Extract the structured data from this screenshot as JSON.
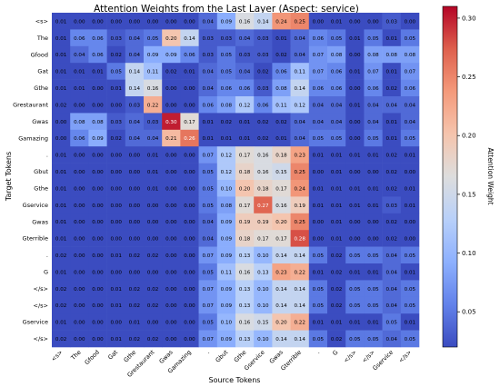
{
  "chart_data": {
    "type": "heatmap",
    "title": "Attention Weights from the Last Layer (Aspect: service)",
    "xlabel": "Source Tokens",
    "ylabel": "Target Tokens",
    "colorbar_label": "Attention Weight",
    "colormap": "coolwarm",
    "vmin": 0.02,
    "vmax": 0.31,
    "colorbar_ticks": [
      "0.05",
      "0.10",
      "0.15",
      "0.20",
      "0.25",
      "0.30"
    ],
    "colorbar_tick_values": [
      0.05,
      0.1,
      0.15,
      0.2,
      0.25,
      0.3
    ],
    "x_tokens": [
      "<s>",
      "The",
      "Gfood",
      "Gat",
      "Gthe",
      "Grestaurant",
      "Gwas",
      "Gamazing",
      ".",
      "Gbut",
      "Gthe",
      "Gservice",
      "Gwas",
      "Gterrible",
      ".",
      "G",
      "</s>",
      "</s>",
      "Gservice",
      "</s>"
    ],
    "y_tokens": [
      "<s>",
      "The",
      "Gfood",
      "Gat",
      "Gthe",
      "Grestaurant",
      "Gwas",
      "Gamazing",
      ".",
      "Gbut",
      "Gthe",
      "Gservice",
      "Gwas",
      "Gterrible",
      ".",
      "G",
      "</s>",
      "</s>",
      "Gservice",
      "</s>"
    ],
    "values": [
      [
        0.01,
        0.0,
        0.0,
        0.0,
        0.0,
        0.0,
        0.0,
        0.0,
        0.04,
        0.09,
        0.16,
        0.14,
        0.24,
        0.25,
        0.0,
        0.01,
        0.0,
        0.0,
        0.03,
        0.0
      ],
      [
        0.01,
        0.06,
        0.06,
        0.03,
        0.04,
        0.05,
        0.2,
        0.14,
        0.03,
        0.03,
        0.04,
        0.03,
        0.01,
        0.04,
        0.06,
        0.05,
        0.01,
        0.05,
        0.01,
        0.05
      ],
      [
        0.01,
        0.04,
        0.06,
        0.02,
        0.04,
        0.09,
        0.09,
        0.06,
        0.03,
        0.05,
        0.03,
        0.03,
        0.02,
        0.04,
        0.07,
        0.08,
        0.0,
        0.08,
        0.08,
        0.08
      ],
      [
        0.01,
        0.01,
        0.01,
        0.05,
        0.14,
        0.11,
        0.02,
        0.01,
        0.04,
        0.05,
        0.04,
        0.02,
        0.06,
        0.11,
        0.07,
        0.06,
        0.01,
        0.07,
        0.01,
        0.07
      ],
      [
        0.01,
        0.01,
        0.0,
        0.01,
        0.14,
        0.16,
        0.0,
        0.0,
        0.04,
        0.06,
        0.06,
        0.03,
        0.08,
        0.14,
        0.06,
        0.06,
        0.0,
        0.06,
        0.02,
        0.06
      ],
      [
        0.02,
        0.0,
        0.0,
        0.0,
        0.03,
        0.22,
        0.0,
        0.0,
        0.06,
        0.08,
        0.12,
        0.06,
        0.11,
        0.12,
        0.04,
        0.04,
        0.01,
        0.04,
        0.04,
        0.04
      ],
      [
        0.0,
        0.08,
        0.08,
        0.03,
        0.04,
        0.03,
        0.3,
        0.17,
        0.01,
        0.02,
        0.01,
        0.02,
        0.02,
        0.04,
        0.04,
        0.04,
        0.0,
        0.04,
        0.01,
        0.04
      ],
      [
        0.0,
        0.06,
        0.09,
        0.02,
        0.04,
        0.04,
        0.21,
        0.26,
        0.01,
        0.01,
        0.01,
        0.02,
        0.01,
        0.04,
        0.05,
        0.05,
        0.0,
        0.05,
        0.01,
        0.05
      ],
      [
        0.01,
        0.0,
        0.0,
        0.0,
        0.0,
        0.01,
        0.0,
        0.0,
        0.07,
        0.12,
        0.17,
        0.16,
        0.18,
        0.23,
        0.01,
        0.01,
        0.01,
        0.01,
        0.02,
        0.01
      ],
      [
        0.01,
        0.0,
        0.0,
        0.0,
        0.0,
        0.01,
        0.0,
        0.0,
        0.05,
        0.12,
        0.18,
        0.16,
        0.15,
        0.25,
        0.0,
        0.01,
        0.0,
        0.0,
        0.02,
        0.0
      ],
      [
        0.01,
        0.0,
        0.0,
        0.0,
        0.0,
        0.01,
        0.0,
        0.0,
        0.05,
        0.1,
        0.2,
        0.18,
        0.17,
        0.24,
        0.01,
        0.01,
        0.01,
        0.01,
        0.02,
        0.01
      ],
      [
        0.01,
        0.0,
        0.0,
        0.0,
        0.0,
        0.0,
        0.0,
        0.0,
        0.05,
        0.08,
        0.17,
        0.27,
        0.16,
        0.19,
        0.01,
        0.01,
        0.01,
        0.01,
        0.03,
        0.01
      ],
      [
        0.01,
        0.0,
        0.0,
        0.0,
        0.0,
        0.0,
        0.0,
        0.0,
        0.04,
        0.09,
        0.19,
        0.19,
        0.2,
        0.25,
        0.0,
        0.01,
        0.0,
        0.0,
        0.02,
        0.0
      ],
      [
        0.01,
        0.0,
        0.0,
        0.0,
        0.0,
        0.0,
        0.0,
        0.0,
        0.04,
        0.09,
        0.18,
        0.17,
        0.17,
        0.28,
        0.0,
        0.01,
        0.0,
        0.0,
        0.02,
        0.0
      ],
      [
        0.02,
        0.0,
        0.0,
        0.01,
        0.02,
        0.02,
        0.0,
        0.0,
        0.07,
        0.09,
        0.13,
        0.1,
        0.14,
        0.14,
        0.05,
        0.02,
        0.05,
        0.05,
        0.04,
        0.05
      ],
      [
        0.01,
        0.0,
        0.0,
        0.0,
        0.0,
        0.0,
        0.0,
        0.0,
        0.05,
        0.11,
        0.16,
        0.13,
        0.23,
        0.22,
        0.01,
        0.02,
        0.01,
        0.01,
        0.04,
        0.01
      ],
      [
        0.02,
        0.0,
        0.0,
        0.01,
        0.02,
        0.02,
        0.0,
        0.0,
        0.07,
        0.09,
        0.13,
        0.1,
        0.14,
        0.14,
        0.05,
        0.02,
        0.05,
        0.05,
        0.04,
        0.05
      ],
      [
        0.02,
        0.0,
        0.0,
        0.01,
        0.02,
        0.02,
        0.0,
        0.0,
        0.07,
        0.09,
        0.13,
        0.1,
        0.14,
        0.14,
        0.05,
        0.02,
        0.05,
        0.05,
        0.04,
        0.05
      ],
      [
        0.01,
        0.0,
        0.0,
        0.0,
        0.01,
        0.0,
        0.0,
        0.0,
        0.05,
        0.1,
        0.16,
        0.15,
        0.2,
        0.22,
        0.01,
        0.01,
        0.01,
        0.01,
        0.05,
        0.01
      ],
      [
        0.02,
        0.0,
        0.0,
        0.01,
        0.02,
        0.02,
        0.0,
        0.0,
        0.07,
        0.09,
        0.13,
        0.1,
        0.14,
        0.14,
        0.05,
        0.02,
        0.05,
        0.05,
        0.04,
        0.05
      ]
    ]
  }
}
